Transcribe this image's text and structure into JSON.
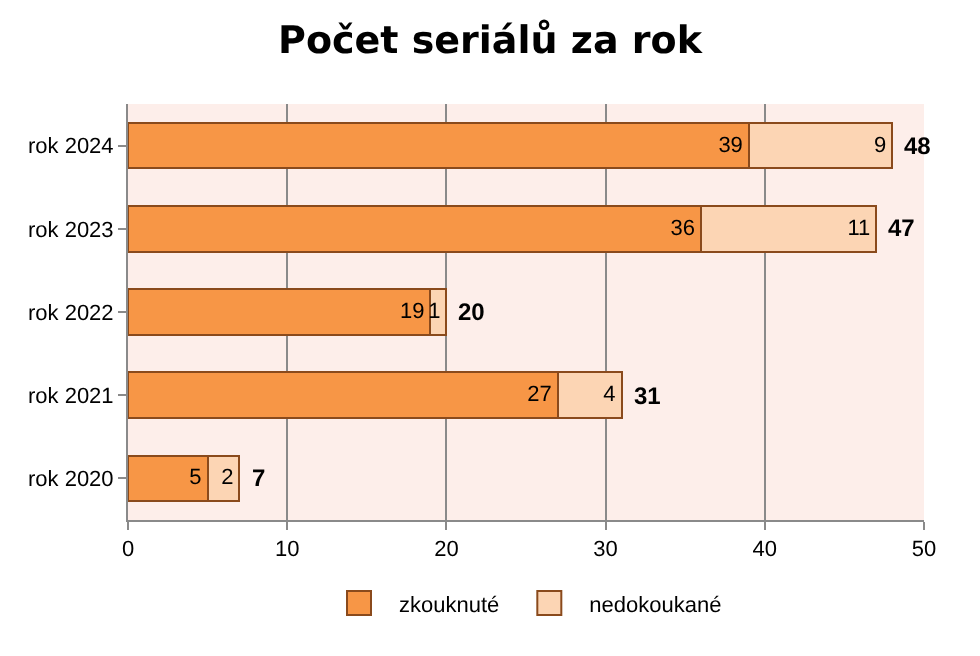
{
  "chart_data": {
    "type": "bar",
    "title": "Počet seriálů za rok",
    "orientation": "horizontal",
    "stacked": true,
    "categories": [
      "rok 2024",
      "rok 2023",
      "rok 2022",
      "rok 2021",
      "rok 2020"
    ],
    "series": [
      {
        "name": "zkouknuté",
        "color": "#f79646",
        "values": [
          39,
          36,
          19,
          27,
          5
        ]
      },
      {
        "name": "nedokoukané",
        "color": "#fcd5b4",
        "values": [
          9,
          11,
          1,
          4,
          2
        ]
      }
    ],
    "totals": [
      "48",
      "47",
      "20",
      "31",
      "7"
    ],
    "data_labels": true,
    "xlim": [
      0,
      50
    ],
    "xticks": [
      0,
      10,
      20,
      30,
      40,
      50
    ],
    "grid": "x",
    "legend": "bottom"
  }
}
